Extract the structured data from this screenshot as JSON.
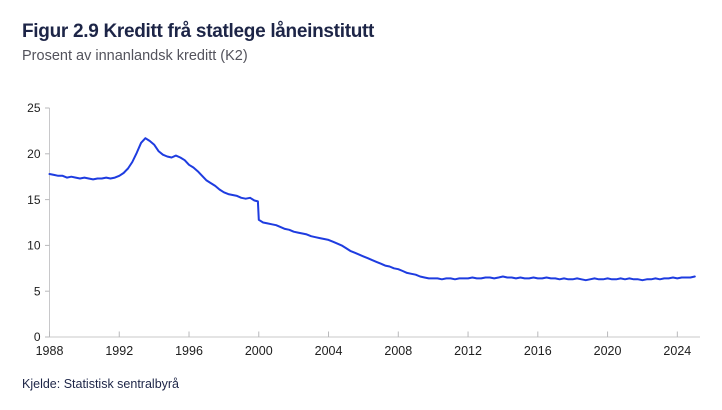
{
  "header": {
    "title": "Figur 2.9 Kreditt frå statlege låneinstitutt",
    "subtitle": "Prosent av innanlandsk kreditt (K2)"
  },
  "footer": {
    "source": "Kjelde: Statistisk sentralbyrå"
  },
  "colors": {
    "line": "#1e3ce0",
    "title_text": "#1d2547",
    "subtitle_text": "#53535c",
    "axis": "#c8c8ca",
    "tick_mark": "#b9b9bb",
    "tick_text": "#202020"
  },
  "chart_data": {
    "type": "line",
    "title": "Figur 2.9 Kreditt frå statlege låneinstitutt",
    "subtitle": "Prosent av innanlandsk kreditt (K2)",
    "source": "Kjelde: Statistisk sentralbyrå",
    "xlabel": "",
    "ylabel": "Prosent av innanlandsk kreditt (K2)",
    "xlim": [
      1988,
      2025.3
    ],
    "ylim": [
      0,
      25
    ],
    "x_ticks": [
      1988,
      1992,
      1996,
      2000,
      2004,
      2008,
      2012,
      2016,
      2020,
      2024
    ],
    "y_ticks": [
      0,
      5,
      10,
      15,
      20,
      25
    ],
    "grid": false,
    "legend": false,
    "series": [
      {
        "name": "Kreditt frå statlege låneinstitutt",
        "color": "#1e3ce0",
        "x": [
          1988,
          1988.25,
          1988.5,
          1988.75,
          1989,
          1989.25,
          1989.5,
          1989.75,
          1990,
          1990.25,
          1990.5,
          1990.75,
          1991,
          1991.25,
          1991.5,
          1991.75,
          1992,
          1992.25,
          1992.5,
          1992.75,
          1993,
          1993.25,
          1993.5,
          1993.75,
          1994,
          1994.25,
          1994.5,
          1994.75,
          1995,
          1995.25,
          1995.5,
          1995.75,
          1996,
          1996.25,
          1996.5,
          1996.75,
          1997,
          1997.25,
          1997.5,
          1997.75,
          1998,
          1998.25,
          1998.5,
          1998.75,
          1999,
          1999.25,
          1999.5,
          1999.75,
          1999.95,
          2000,
          2000.25,
          2000.5,
          2000.75,
          2001,
          2001.25,
          2001.5,
          2001.75,
          2002,
          2002.25,
          2002.5,
          2002.75,
          2003,
          2003.25,
          2003.5,
          2003.75,
          2004,
          2004.25,
          2004.5,
          2004.75,
          2005,
          2005.25,
          2005.5,
          2005.75,
          2006,
          2006.25,
          2006.5,
          2006.75,
          2007,
          2007.25,
          2007.5,
          2007.75,
          2008,
          2008.25,
          2008.5,
          2008.75,
          2009,
          2009.25,
          2009.5,
          2009.75,
          2010,
          2010.25,
          2010.5,
          2010.75,
          2011,
          2011.25,
          2011.5,
          2011.75,
          2012,
          2012.25,
          2012.5,
          2012.75,
          2013,
          2013.25,
          2013.5,
          2013.75,
          2014,
          2014.25,
          2014.5,
          2014.75,
          2015,
          2015.25,
          2015.5,
          2015.75,
          2016,
          2016.25,
          2016.5,
          2016.75,
          2017,
          2017.25,
          2017.5,
          2017.75,
          2018,
          2018.25,
          2018.5,
          2018.75,
          2019,
          2019.25,
          2019.5,
          2019.75,
          2020,
          2020.25,
          2020.5,
          2020.75,
          2021,
          2021.25,
          2021.5,
          2021.75,
          2022,
          2022.25,
          2022.5,
          2022.75,
          2023,
          2023.25,
          2023.5,
          2023.75,
          2024,
          2024.25,
          2024.5,
          2024.75,
          2025
        ],
        "values": [
          17.8,
          17.7,
          17.6,
          17.6,
          17.4,
          17.5,
          17.4,
          17.3,
          17.4,
          17.3,
          17.2,
          17.3,
          17.3,
          17.4,
          17.3,
          17.4,
          17.6,
          17.9,
          18.4,
          19.1,
          20.1,
          21.2,
          21.7,
          21.4,
          21.0,
          20.3,
          19.9,
          19.7,
          19.6,
          19.8,
          19.6,
          19.3,
          18.8,
          18.5,
          18.1,
          17.6,
          17.1,
          16.8,
          16.5,
          16.1,
          15.8,
          15.6,
          15.5,
          15.4,
          15.2,
          15.1,
          15.2,
          14.9,
          14.8,
          12.8,
          12.5,
          12.4,
          12.3,
          12.2,
          12.0,
          11.8,
          11.7,
          11.5,
          11.4,
          11.3,
          11.2,
          11.0,
          10.9,
          10.8,
          10.7,
          10.6,
          10.4,
          10.2,
          10.0,
          9.7,
          9.4,
          9.2,
          9.0,
          8.8,
          8.6,
          8.4,
          8.2,
          8.0,
          7.8,
          7.7,
          7.5,
          7.4,
          7.2,
          7.0,
          6.9,
          6.8,
          6.6,
          6.5,
          6.4,
          6.4,
          6.4,
          6.3,
          6.4,
          6.4,
          6.3,
          6.4,
          6.4,
          6.4,
          6.5,
          6.4,
          6.4,
          6.5,
          6.5,
          6.4,
          6.5,
          6.6,
          6.5,
          6.5,
          6.4,
          6.5,
          6.4,
          6.4,
          6.5,
          6.4,
          6.4,
          6.5,
          6.4,
          6.4,
          6.3,
          6.4,
          6.3,
          6.3,
          6.4,
          6.3,
          6.2,
          6.3,
          6.4,
          6.3,
          6.3,
          6.4,
          6.3,
          6.3,
          6.4,
          6.3,
          6.4,
          6.3,
          6.3,
          6.2,
          6.3,
          6.3,
          6.4,
          6.3,
          6.4,
          6.4,
          6.5,
          6.4,
          6.5,
          6.5,
          6.5,
          6.6
        ]
      }
    ]
  }
}
